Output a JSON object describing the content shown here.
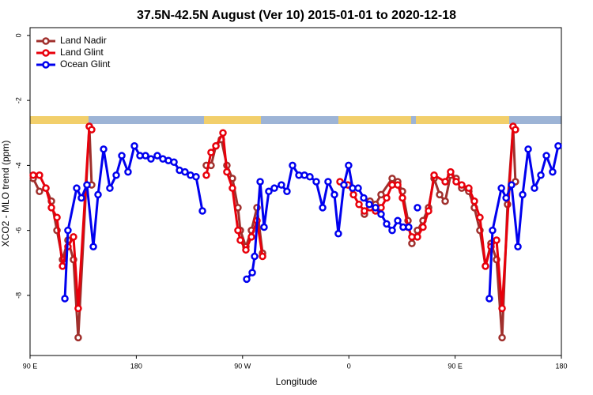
{
  "chart_data": {
    "type": "line",
    "title": "37.5N-42.5N August (Ver 10)   2015-01-01 to 2020-12-18",
    "x_label": "Longitude",
    "y_label": "XCO2 - MLO trend (ppm)",
    "xlim": [
      90,
      540
    ],
    "xticks": [
      {
        "value": 90,
        "label": "90 E"
      },
      180,
      {
        "value": 270,
        "label": "90 W"
      },
      {
        "value": 360,
        "label": "0"
      },
      {
        "value": 450,
        "label": "90 E"
      },
      {
        "value": 540,
        "label": "180"
      }
    ],
    "ylim": [
      -9.85,
      0.24
    ],
    "yticks": [
      0,
      -2,
      -4,
      -6,
      -8
    ],
    "legend": "top-left",
    "series": [
      {
        "name": "Land Nadir",
        "color": "#a0302d",
        "x": [
          92.7,
          98.0,
          103.4,
          108.1,
          112.8,
          117.5,
          122.1,
          126.8,
          130.8,
          140.2,
          142.2,
          null,
          239.3,
          243.3,
          247.4,
          252.0,
          256.7,
          261.4,
          266.1,
          268.1,
          272.8,
          277.5,
          282.2,
          286.9,
          null,
          373.2,
          377.9,
          382.6,
          387.3,
          396.7,
          401.4,
          405.4,
          410.1,
          413.4,
          418.1,
          422.8,
          427.5,
          432.2,
          436.9,
          441.6,
          446.2,
          450.9,
          455.6,
          461.6,
          466.3,
          471.0,
          475.7,
          480.4,
          485.1,
          489.8,
          494.4,
          499.1,
          501.1
        ],
        "values": [
          -4.4,
          -4.8,
          -4.7,
          -5.1,
          -6.0,
          -6.9,
          -6.3,
          -6.9,
          -9.3,
          -2.8,
          -4.6,
          null,
          -4.0,
          -4.0,
          -3.4,
          -3.2,
          -4.0,
          -4.4,
          -5.3,
          -6.0,
          -6.5,
          -6.0,
          -5.3,
          -6.7,
          null,
          -5.5,
          -5.1,
          -5.2,
          -4.9,
          -4.4,
          -4.5,
          -4.8,
          -5.7,
          -6.4,
          -6.0,
          -5.7,
          -5.3,
          -4.4,
          -4.9,
          -5.1,
          -4.3,
          -4.4,
          -4.7,
          -4.8,
          -5.3,
          -6.0,
          -7.1,
          -6.4,
          -6.9,
          -9.3,
          -5.2,
          -2.8,
          -4.5
        ]
      },
      {
        "name": "Land Glint",
        "color": "#e8000b",
        "x": [
          92.7,
          98.0,
          103.4,
          108.1,
          112.8,
          117.5,
          122.1,
          126.8,
          130.8,
          140.2,
          142.2,
          null,
          239.3,
          243.3,
          247.4,
          253.4,
          256.7,
          261.4,
          266.1,
          268.1,
          272.8,
          277.5,
          282.2,
          286.9,
          null,
          352.5,
          359.2,
          363.9,
          368.6,
          373.2,
          377.9,
          382.6,
          387.3,
          392.0,
          396.7,
          401.4,
          405.4,
          410.1,
          413.4,
          418.1,
          422.8,
          427.5,
          432.2,
          441.6,
          446.2,
          450.9,
          455.6,
          461.6,
          466.3,
          471.0,
          475.7,
          480.4,
          485.1,
          489.8,
          499.1,
          501.1
        ],
        "values": [
          -4.3,
          -4.3,
          -4.7,
          -5.3,
          -5.6,
          -7.1,
          -6.5,
          -6.2,
          -8.4,
          -2.8,
          -2.9,
          null,
          -4.3,
          -3.6,
          -3.4,
          -3.0,
          -4.2,
          -4.7,
          -6.0,
          -6.3,
          -6.6,
          -6.2,
          -5.7,
          -6.8,
          null,
          -4.5,
          -4.6,
          -4.9,
          -5.2,
          -5.4,
          -5.3,
          -5.4,
          -5.3,
          -5.0,
          -4.6,
          -4.6,
          -5.0,
          -5.9,
          -6.2,
          -6.2,
          -5.9,
          -5.4,
          -4.3,
          -4.5,
          -4.2,
          -4.5,
          -4.6,
          -4.7,
          -5.1,
          -5.6,
          -7.1,
          -6.5,
          -6.3,
          -8.4,
          -2.8,
          -2.9
        ]
      },
      {
        "name": "Ocean Glint",
        "color": "#0000ee",
        "x": [
          119.5,
          122.1,
          129.5,
          133.5,
          138.2,
          143.6,
          147.6,
          152.3,
          157.6,
          163.0,
          167.7,
          173.0,
          178.4,
          183.1,
          187.8,
          192.4,
          197.8,
          202.5,
          207.2,
          211.9,
          216.6,
          221.2,
          225.9,
          230.6,
          236.0,
          null,
          273.5,
          278.2,
          280.2,
          284.9,
          288.2,
          292.2,
          296.9,
          302.9,
          307.6,
          312.3,
          317.7,
          322.4,
          327.0,
          332.4,
          337.8,
          342.4,
          347.8,
          351.1,
          355.8,
          359.8,
          363.2,
          367.9,
          372.6,
          377.3,
          382.6,
          387.3,
          392.0,
          396.7,
          401.4,
          406.0,
          410.7,
          null,
          418.1,
          null,
          479.0,
          481.7,
          489.2,
          493.2,
          497.8,
          503.2,
          507.2,
          511.9,
          517.2,
          522.6,
          527.3,
          532.6,
          537.3
        ],
        "values": [
          -8.1,
          -6.0,
          -4.7,
          -5.0,
          -4.6,
          -6.5,
          -4.9,
          -3.5,
          -4.7,
          -4.3,
          -3.7,
          -4.2,
          -3.4,
          -3.7,
          -3.7,
          -3.8,
          -3.7,
          -3.8,
          -3.85,
          -3.9,
          -4.15,
          -4.2,
          -4.3,
          -4.35,
          -5.4,
          null,
          -7.5,
          -7.3,
          -6.8,
          -4.5,
          -5.9,
          -4.8,
          -4.7,
          -4.6,
          -4.8,
          -4.0,
          -4.3,
          -4.3,
          -4.35,
          -4.5,
          -5.3,
          -4.5,
          -4.9,
          -6.1,
          -4.6,
          -4.0,
          -4.7,
          -4.7,
          -5.0,
          -5.2,
          -5.3,
          -5.5,
          -5.8,
          -6.0,
          -5.7,
          -5.9,
          -5.9,
          null,
          -5.3,
          null,
          -8.1,
          -6.0,
          -4.7,
          -5.0,
          -4.6,
          -6.5,
          -4.9,
          -3.5,
          -4.7,
          -4.3,
          -3.7,
          -4.2,
          -3.4
        ]
      }
    ]
  }
}
